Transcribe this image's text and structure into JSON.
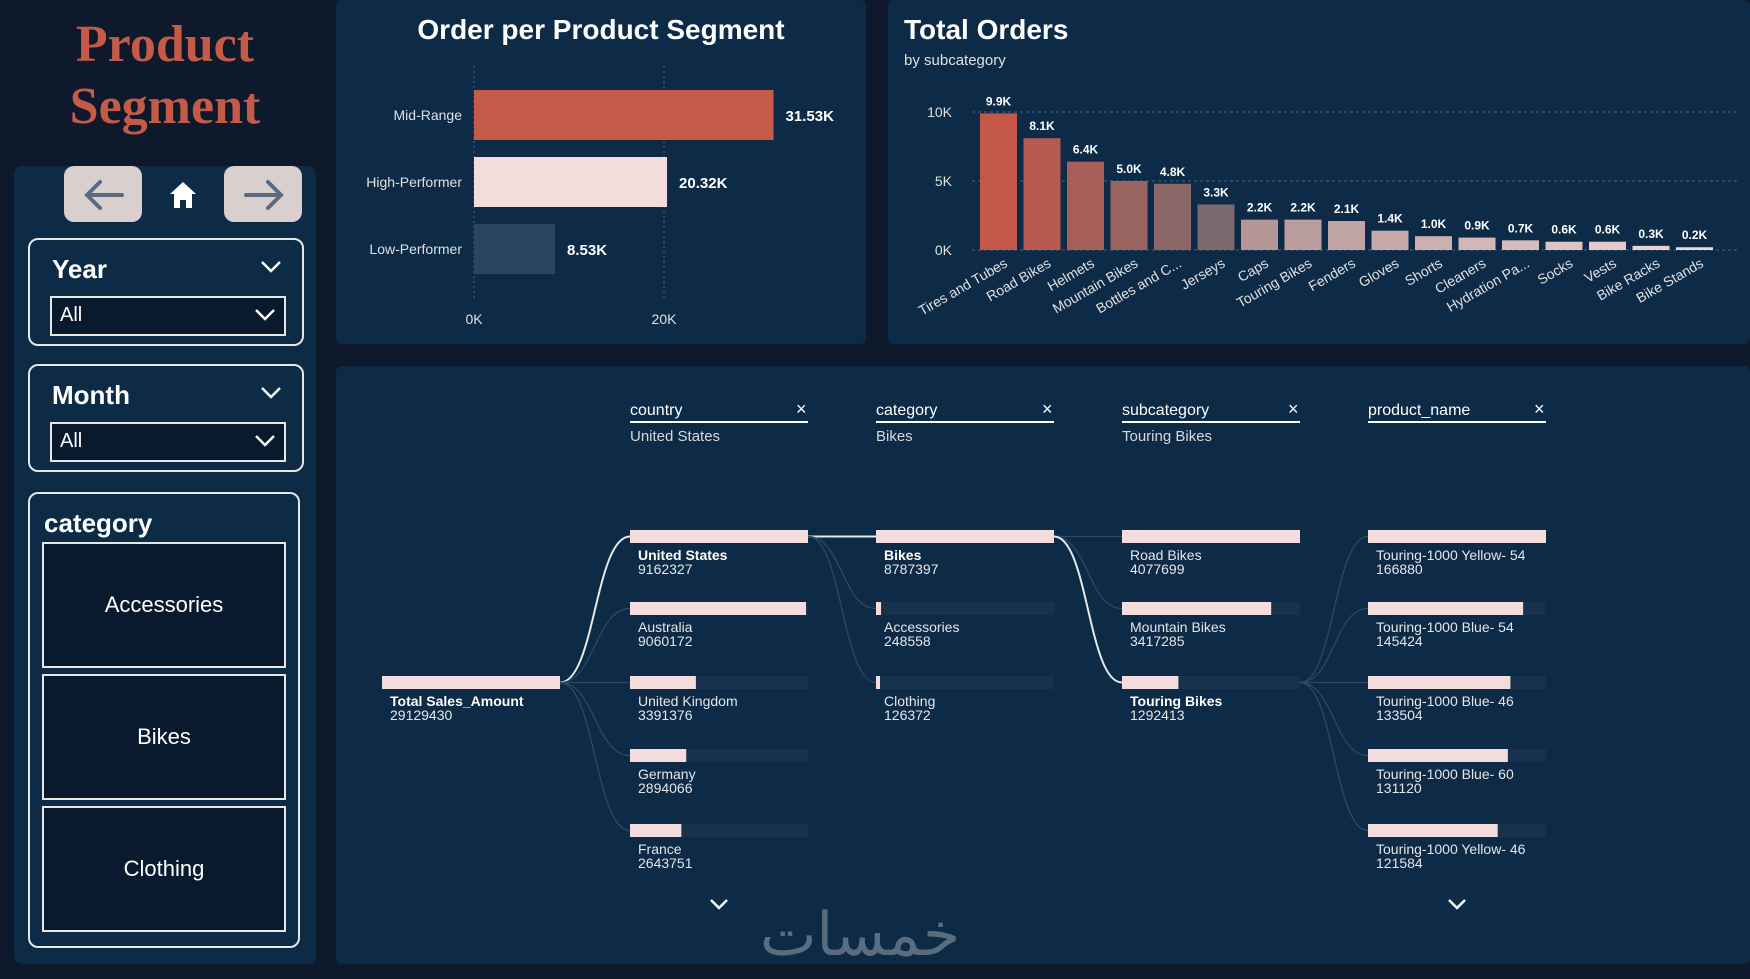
{
  "header": {
    "title_line1": "Product",
    "title_line2": "Segment"
  },
  "nav": {
    "back_icon": "arrow-left-icon",
    "home_icon": "home-icon",
    "forward_icon": "arrow-right-icon"
  },
  "filters": {
    "year": {
      "label": "Year",
      "value": "All"
    },
    "month": {
      "label": "Month",
      "value": "All"
    }
  },
  "category_slicer": {
    "title": "category",
    "items": [
      "Accessories",
      "Bikes",
      "Clothing"
    ]
  },
  "colors": {
    "accent": "#c45a48",
    "panel": "#0d2a47",
    "background": "#0e1a2c",
    "light_bar": "#f2dcdc",
    "dark_bar": "#2b4560"
  },
  "chart_data": [
    {
      "type": "bar",
      "orientation": "horizontal",
      "title": "Order per Product Segment",
      "categories": [
        "Mid-Range",
        "High-Performer",
        "Low-Performer"
      ],
      "values": [
        31530,
        20320,
        8530
      ],
      "data_labels": [
        "31.53K",
        "20.32K",
        "8.53K"
      ],
      "colors": [
        "#c45a48",
        "#f2dcdc",
        "#2b4560"
      ],
      "xticks": [
        "0K",
        "20K"
      ],
      "xlim": [
        0,
        40000
      ]
    },
    {
      "type": "bar",
      "title": "Total Orders",
      "subtitle": "by subcategory",
      "categories": [
        "Tires and Tubes",
        "Road Bikes",
        "Helmets",
        "Mountain Bikes",
        "Bottles and C...",
        "Jerseys",
        "Caps",
        "Touring Bikes",
        "Fenders",
        "Gloves",
        "Shorts",
        "Cleaners",
        "Hydration Pa...",
        "Socks",
        "Vests",
        "Bike Racks",
        "Bike Stands"
      ],
      "values": [
        9900,
        8100,
        6400,
        5000,
        4800,
        3300,
        2200,
        2200,
        2100,
        1400,
        1000,
        900,
        700,
        600,
        600,
        300,
        200
      ],
      "data_labels": [
        "9.9K",
        "8.1K",
        "6.4K",
        "5.0K",
        "4.8K",
        "3.3K",
        "2.2K",
        "2.2K",
        "2.1K",
        "1.4K",
        "1.0K",
        "0.9K",
        "0.7K",
        "0.6K",
        "0.6K",
        "0.3K",
        "0.2K"
      ],
      "yticks": [
        "0K",
        "5K",
        "10K"
      ],
      "ylim": [
        0,
        10000
      ],
      "grid": true
    }
  ],
  "decomp_tree": {
    "root": {
      "label": "Total Sales_Amount",
      "value": "29129430"
    },
    "levels": [
      {
        "header": "country",
        "filter": "United States",
        "items": [
          {
            "label": "United States",
            "value": "9162327",
            "raw": 9162327,
            "selected": true
          },
          {
            "label": "Australia",
            "value": "9060172",
            "raw": 9060172
          },
          {
            "label": "United Kingdom",
            "value": "3391376",
            "raw": 3391376
          },
          {
            "label": "Germany",
            "value": "2894066",
            "raw": 2894066
          },
          {
            "label": "France",
            "value": "2643751",
            "raw": 2643751
          }
        ]
      },
      {
        "header": "category",
        "filter": "Bikes",
        "items": [
          {
            "label": "Bikes",
            "value": "8787397",
            "raw": 8787397,
            "selected": true
          },
          {
            "label": "Accessories",
            "value": "248558",
            "raw": 248558
          },
          {
            "label": "Clothing",
            "value": "126372",
            "raw": 126372
          }
        ]
      },
      {
        "header": "subcategory",
        "filter": "Touring Bikes",
        "items": [
          {
            "label": "Road Bikes",
            "value": "4077699",
            "raw": 4077699
          },
          {
            "label": "Mountain Bikes",
            "value": "3417285",
            "raw": 3417285
          },
          {
            "label": "Touring Bikes",
            "value": "1292413",
            "raw": 1292413,
            "selected": true
          }
        ]
      },
      {
        "header": "product_name",
        "filter": "",
        "items": [
          {
            "label": "Touring-1000 Yellow- 54",
            "value": "166880",
            "raw": 166880
          },
          {
            "label": "Touring-1000 Blue- 54",
            "value": "145424",
            "raw": 145424
          },
          {
            "label": "Touring-1000 Blue- 46",
            "value": "133504",
            "raw": 133504
          },
          {
            "label": "Touring-1000 Blue- 60",
            "value": "131120",
            "raw": 131120
          },
          {
            "label": "Touring-1000 Yellow- 46",
            "value": "121584",
            "raw": 121584
          }
        ]
      }
    ]
  },
  "watermark": "خمسات"
}
